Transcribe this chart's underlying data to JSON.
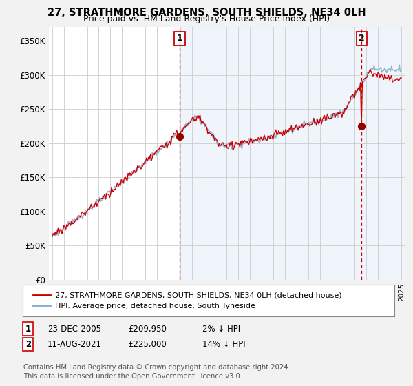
{
  "title": "27, STRATHMORE GARDENS, SOUTH SHIELDS, NE34 0LH",
  "subtitle": "Price paid vs. HM Land Registry's House Price Index (HPI)",
  "ylabel_ticks": [
    "£0",
    "£50K",
    "£100K",
    "£150K",
    "£200K",
    "£250K",
    "£300K",
    "£350K"
  ],
  "ytick_values": [
    0,
    50000,
    100000,
    150000,
    200000,
    250000,
    300000,
    350000
  ],
  "ylim": [
    0,
    370000
  ],
  "xlim_start": 1994.7,
  "xlim_end": 2025.3,
  "marker1_x": 2005.97,
  "marker1_y": 209950,
  "marker2_x": 2021.6,
  "marker2_y": 225000,
  "vline1_x": 2005.97,
  "vline2_x": 2021.6,
  "legend_line1": "27, STRATHMORE GARDENS, SOUTH SHIELDS, NE34 0LH (detached house)",
  "legend_line2": "HPI: Average price, detached house, South Tyneside",
  "table_row1": [
    "1",
    "23-DEC-2005",
    "£209,950",
    "2% ↓ HPI"
  ],
  "table_row2": [
    "2",
    "11-AUG-2021",
    "£225,000",
    "14% ↓ HPI"
  ],
  "footer": "Contains HM Land Registry data © Crown copyright and database right 2024.\nThis data is licensed under the Open Government Licence v3.0.",
  "line_color_red": "#cc0000",
  "line_color_blue": "#88aacc",
  "background_color": "#f2f2f2",
  "plot_bg_color": "#ffffff",
  "fill_color": "#ddeeff",
  "grid_color": "#cccccc",
  "vline_color": "#cc0000"
}
